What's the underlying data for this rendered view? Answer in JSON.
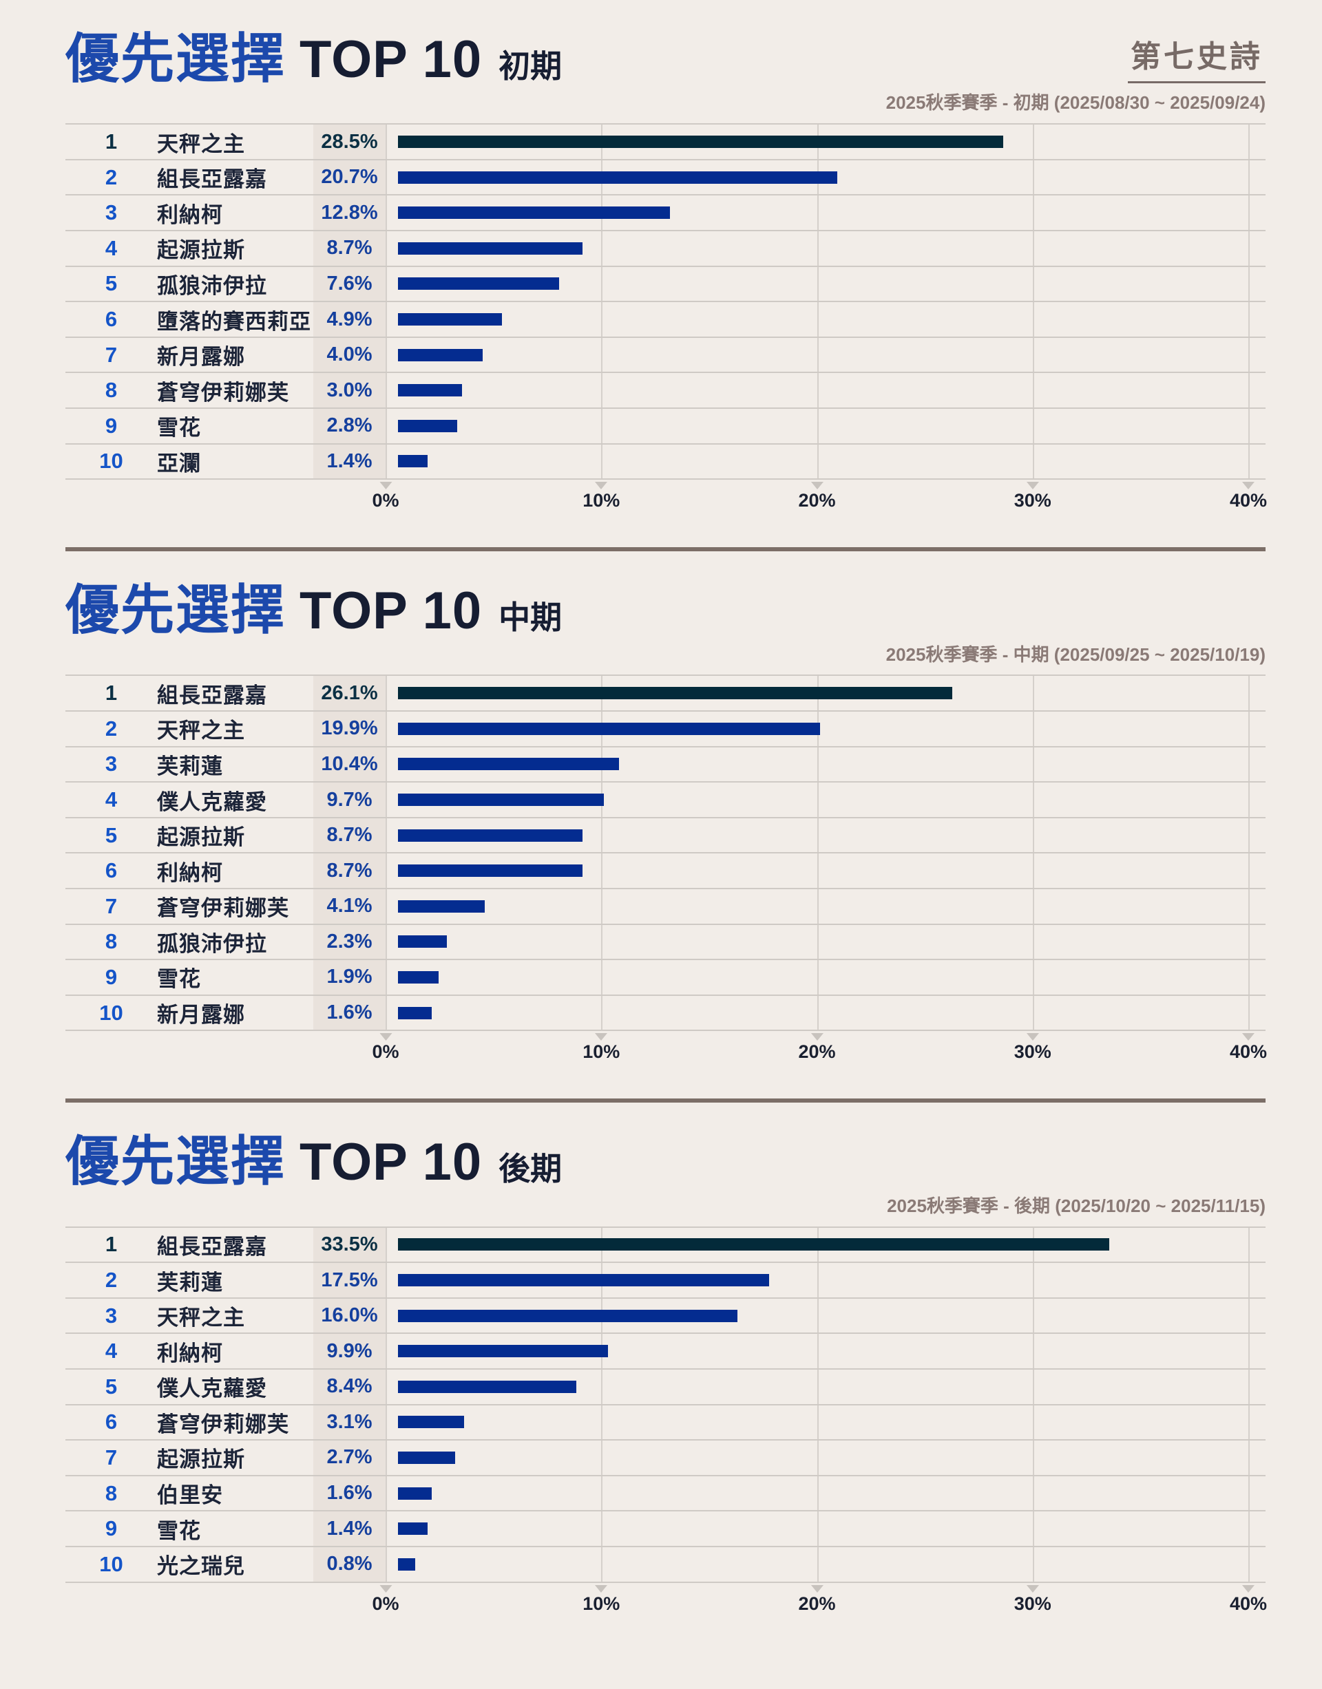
{
  "logo": {
    "text": "第七史詩"
  },
  "colors": {
    "background": "#f2ede8",
    "title_blue": "#1c49ac",
    "title_navy": "#161d32",
    "bar": "#042c90",
    "bar_rank1": "#032a3a",
    "rank_number": "#1454c8",
    "rank1_number": "#0b3044",
    "percent_text": "#15409e",
    "percent_rank1_text": "#0b3044",
    "name_text": "#1c2438",
    "divider": "#7c6e67",
    "percent_strip": "#e9e2dc",
    "gridline": "#d5d0cb"
  },
  "sections": [
    {
      "title_main": "優先選擇",
      "title_top": "TOP 10",
      "title_period": "初期",
      "subtitle": "2025秋季賽季 - 初期 (2025/08/30 ~ 2025/09/24)"
    },
    {
      "title_main": "優先選擇",
      "title_top": "TOP 10",
      "title_period": "中期",
      "subtitle": "2025秋季賽季 - 中期 (2025/09/25 ~ 2025/10/19)"
    },
    {
      "title_main": "優先選擇",
      "title_top": "TOP 10",
      "title_period": "後期",
      "subtitle": "2025秋季賽季 - 後期 (2025/10/20 ~ 2025/11/15)"
    }
  ],
  "chart_data": [
    {
      "type": "bar",
      "orientation": "horizontal",
      "title": "優先選擇 TOP 10 初期",
      "subtitle": "2025秋季賽季 - 初期 (2025/08/30 ~ 2025/09/24)",
      "ranks": [
        1,
        2,
        3,
        4,
        5,
        6,
        7,
        8,
        9,
        10
      ],
      "categories": [
        "天秤之主",
        "組長亞露嘉",
        "利納柯",
        "起源拉斯",
        "孤狼沛伊拉",
        "墮落的賽西莉亞",
        "新月露娜",
        "蒼穹伊莉娜芙",
        "雪花",
        "亞瀾"
      ],
      "values": [
        28.5,
        20.7,
        12.8,
        8.7,
        7.6,
        4.9,
        4.0,
        3.0,
        2.8,
        1.4
      ],
      "value_labels": [
        "28.5%",
        "20.7%",
        "12.8%",
        "8.7%",
        "7.6%",
        "4.9%",
        "4.0%",
        "3.0%",
        "2.8%",
        "1.4%"
      ],
      "xlim": [
        0,
        40
      ],
      "xticks": [
        "0%",
        "10%",
        "20%",
        "30%",
        "40%"
      ],
      "grid": true,
      "highlight_first_rank": true
    },
    {
      "type": "bar",
      "orientation": "horizontal",
      "title": "優先選擇 TOP 10 中期",
      "subtitle": "2025秋季賽季 - 中期 (2025/09/25 ~ 2025/10/19)",
      "ranks": [
        1,
        2,
        3,
        4,
        5,
        6,
        7,
        8,
        9,
        10
      ],
      "categories": [
        "組長亞露嘉",
        "天秤之主",
        "芙莉蓮",
        "僕人克蘿愛",
        "起源拉斯",
        "利納柯",
        "蒼穹伊莉娜芙",
        "孤狼沛伊拉",
        "雪花",
        "新月露娜"
      ],
      "values": [
        26.1,
        19.9,
        10.4,
        9.7,
        8.7,
        8.7,
        4.1,
        2.3,
        1.9,
        1.6
      ],
      "value_labels": [
        "26.1%",
        "19.9%",
        "10.4%",
        "9.7%",
        "8.7%",
        "8.7%",
        "4.1%",
        "2.3%",
        "1.9%",
        "1.6%"
      ],
      "xlim": [
        0,
        40
      ],
      "xticks": [
        "0%",
        "10%",
        "20%",
        "30%",
        "40%"
      ],
      "grid": true,
      "highlight_first_rank": true
    },
    {
      "type": "bar",
      "orientation": "horizontal",
      "title": "優先選擇 TOP 10 後期",
      "subtitle": "2025秋季賽季 - 後期 (2025/10/20 ~ 2025/11/15)",
      "ranks": [
        1,
        2,
        3,
        4,
        5,
        6,
        7,
        8,
        9,
        10
      ],
      "categories": [
        "組長亞露嘉",
        "芙莉蓮",
        "天秤之主",
        "利納柯",
        "僕人克蘿愛",
        "蒼穹伊莉娜芙",
        "起源拉斯",
        "伯里安",
        "雪花",
        "光之瑞兒"
      ],
      "values": [
        33.5,
        17.5,
        16.0,
        9.9,
        8.4,
        3.1,
        2.7,
        1.6,
        1.4,
        0.8
      ],
      "value_labels": [
        "33.5%",
        "17.5%",
        "16.0%",
        "9.9%",
        "8.4%",
        "3.1%",
        "2.7%",
        "1.6%",
        "1.4%",
        "0.8%"
      ],
      "xlim": [
        0,
        40
      ],
      "xticks": [
        "0%",
        "10%",
        "20%",
        "30%",
        "40%"
      ],
      "grid": true,
      "highlight_first_rank": true
    }
  ]
}
